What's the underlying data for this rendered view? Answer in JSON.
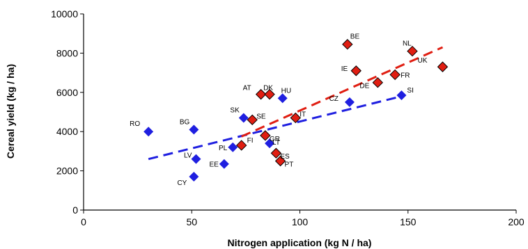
{
  "chart_data": {
    "type": "scatter",
    "xlabel": "Nitrogen application (kg N / ha)",
    "ylabel": "Cereal yield (kg / ha)",
    "xlim": [
      0,
      200
    ],
    "ylim": [
      0,
      10000
    ],
    "x_ticks": [
      "0",
      "50",
      "100",
      "150",
      "200"
    ],
    "y_ticks": [
      "0",
      "2000",
      "4000",
      "6000",
      "8000",
      "10000"
    ],
    "grid": false,
    "series": [
      {
        "color": "#1f1fe0",
        "marker": "diamond",
        "points": [
          {
            "label": "RO",
            "x": 30,
            "y": 4000
          },
          {
            "label": "BG",
            "x": 51,
            "y": 4100
          },
          {
            "label": "LV",
            "x": 52,
            "y": 2600
          },
          {
            "label": "CY",
            "x": 51,
            "y": 1700
          },
          {
            "label": "EE",
            "x": 65,
            "y": 2350
          },
          {
            "label": "PL",
            "x": 69,
            "y": 3200
          },
          {
            "label": "SK",
            "x": 74,
            "y": 4700
          },
          {
            "label": "LT",
            "x": 86,
            "y": 3400
          },
          {
            "label": "HU",
            "x": 92,
            "y": 5700
          },
          {
            "label": "CZ",
            "x": 123,
            "y": 5500
          },
          {
            "label": "SI",
            "x": 147,
            "y": 5850
          }
        ],
        "trend": {
          "x": [
            30,
            147
          ],
          "y": [
            2600,
            5800
          ]
        }
      },
      {
        "color": "#e01e12",
        "marker": "diamond",
        "points": [
          {
            "label": "FI",
            "x": 73,
            "y": 3300
          },
          {
            "label": "SE",
            "x": 78,
            "y": 4600
          },
          {
            "label": "AT",
            "x": 82,
            "y": 5900
          },
          {
            "label": "DK",
            "x": 86,
            "y": 5900
          },
          {
            "label": "GR",
            "x": 84,
            "y": 3800
          },
          {
            "label": "ES",
            "x": 89,
            "y": 2900
          },
          {
            "label": "PT",
            "x": 91,
            "y": 2500
          },
          {
            "label": "IT",
            "x": 98,
            "y": 4700
          },
          {
            "label": "BE",
            "x": 122,
            "y": 8450
          },
          {
            "label": "IE",
            "x": 126,
            "y": 7100
          },
          {
            "label": "DE",
            "x": 136,
            "y": 6500
          },
          {
            "label": "FR",
            "x": 144,
            "y": 6900
          },
          {
            "label": "NL",
            "x": 152,
            "y": 8100
          },
          {
            "label": "UK",
            "x": 166,
            "y": 7300
          }
        ],
        "trend": {
          "x": [
            73,
            166
          ],
          "y": [
            3750,
            8300
          ]
        }
      }
    ]
  }
}
